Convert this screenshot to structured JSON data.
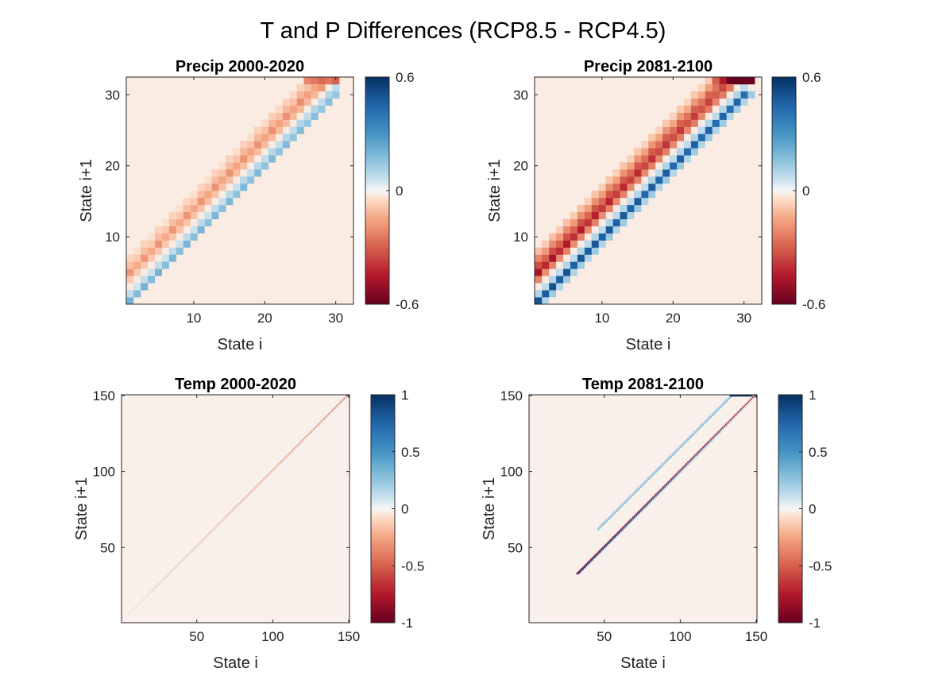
{
  "figure": {
    "title": "T and P Differences (RCP8.5 - RCP4.5)"
  },
  "chart_data": [
    {
      "type": "heatmap",
      "title": "Precip 2000-2020",
      "xlabel": "State i",
      "ylabel": "State i+1",
      "n_states": 32,
      "xlim": [
        0.5,
        32.5
      ],
      "ylim": [
        0.5,
        32.5
      ],
      "xticks": [
        10,
        20,
        30
      ],
      "yticks": [
        10,
        20,
        30
      ],
      "colorbar": {
        "min": -0.6,
        "max": 0.6,
        "ticks": [
          0.6,
          0,
          -0.6
        ],
        "tick_labels": [
          "0.6",
          "0",
          "-0.6"
        ]
      },
      "colormap": "red-white-blue",
      "background_value": -0.02,
      "bands": [
        {
          "offset": 0,
          "from": 1,
          "to": 30,
          "start_value": 0.18,
          "end_value": 0.14,
          "checker_alt": 0.03
        },
        {
          "offset": 1,
          "from": 1,
          "to": 30,
          "start_value": 0.05,
          "end_value": 0.08,
          "checker_alt": 0.02
        },
        {
          "offset": 3,
          "from": 1,
          "to": 29,
          "start_value": -0.08,
          "end_value": -0.12,
          "checker_alt": 0.0
        },
        {
          "offset": 4,
          "from": 1,
          "to": 28,
          "start_value": -0.14,
          "end_value": -0.16,
          "checker_alt": -0.04
        },
        {
          "offset": 5,
          "from": 1,
          "to": 27,
          "start_value": -0.08,
          "end_value": -0.1,
          "checker_alt": -0.02
        },
        {
          "offset": 6,
          "from": 1,
          "to": 26,
          "start_value": -0.04,
          "end_value": -0.05,
          "checker_alt": -0.02
        }
      ],
      "cells": [
        {
          "i": 26,
          "j": 32,
          "value": -0.22
        },
        {
          "i": 27,
          "j": 32,
          "value": -0.25
        },
        {
          "i": 28,
          "j": 32,
          "value": -0.28
        },
        {
          "i": 29,
          "j": 32,
          "value": -0.25
        },
        {
          "i": 30,
          "j": 32,
          "value": -0.3
        },
        {
          "i": 27,
          "j": 31,
          "value": -0.15
        },
        {
          "i": 28,
          "j": 31,
          "value": -0.18
        }
      ]
    },
    {
      "type": "heatmap",
      "title": "Precip 2081-2100",
      "xlabel": "State i",
      "ylabel": "State i+1",
      "n_states": 32,
      "xlim": [
        0.5,
        32.5
      ],
      "ylim": [
        0.5,
        32.5
      ],
      "xticks": [
        10,
        20,
        30
      ],
      "yticks": [
        10,
        20,
        30
      ],
      "colorbar": {
        "min": -0.6,
        "max": 0.6,
        "ticks": [
          0.6,
          0,
          -0.6
        ],
        "tick_labels": [
          "0.6",
          "0",
          "-0.6"
        ]
      },
      "colormap": "red-white-blue",
      "background_value": -0.02,
      "bands": [
        {
          "offset": -1,
          "from": 1,
          "to": 31,
          "start_value": 0.1,
          "end_value": 0.1,
          "checker_alt": 0.03
        },
        {
          "offset": 0,
          "from": 1,
          "to": 30,
          "start_value": 0.48,
          "end_value": 0.42,
          "checker_alt": 0.03
        },
        {
          "offset": 1,
          "from": 1,
          "to": 30,
          "start_value": 0.08,
          "end_value": 0.08,
          "checker_alt": 0.02
        },
        {
          "offset": 3,
          "from": 1,
          "to": 29,
          "start_value": -0.2,
          "end_value": -0.22,
          "checker_alt": -0.02
        },
        {
          "offset": 4,
          "from": 1,
          "to": 28,
          "start_value": -0.42,
          "end_value": -0.3,
          "checker_alt": -0.05
        },
        {
          "offset": 5,
          "from": 1,
          "to": 27,
          "start_value": -0.3,
          "end_value": -0.25,
          "checker_alt": -0.04
        },
        {
          "offset": 6,
          "from": 1,
          "to": 26,
          "start_value": -0.18,
          "end_value": -0.14,
          "checker_alt": -0.03
        },
        {
          "offset": 7,
          "from": 1,
          "to": 25,
          "start_value": -0.08,
          "end_value": -0.06,
          "checker_alt": -0.02
        }
      ],
      "cells": [
        {
          "i": 28,
          "j": 32,
          "value": -0.6
        },
        {
          "i": 29,
          "j": 32,
          "value": -0.6
        },
        {
          "i": 30,
          "j": 32,
          "value": -0.6
        },
        {
          "i": 31,
          "j": 32,
          "value": -0.6
        },
        {
          "i": 27,
          "j": 32,
          "value": -0.45
        },
        {
          "i": 26,
          "j": 32,
          "value": -0.3
        },
        {
          "i": 27,
          "j": 31,
          "value": -0.35
        },
        {
          "i": 28,
          "j": 31,
          "value": -0.25
        }
      ]
    },
    {
      "type": "heatmap",
      "title": "Temp 2000-2020",
      "xlabel": "State i",
      "ylabel": "State i+1",
      "n_states": 150,
      "xlim": [
        0.5,
        150.5
      ],
      "ylim": [
        0.5,
        150.5
      ],
      "xticks": [
        50,
        100,
        150
      ],
      "yticks": [
        50,
        100,
        150
      ],
      "colorbar": {
        "min": -1,
        "max": 1,
        "ticks": [
          1,
          0.5,
          0,
          -0.5,
          -1
        ],
        "tick_labels": [
          "1",
          "0.5",
          "0",
          "-0.5",
          "-1"
        ]
      },
      "colormap": "red-white-blue",
      "background_value": -0.02,
      "bands": [
        {
          "offset": 1,
          "from": 5,
          "to": 149,
          "start_value": -0.08,
          "end_value": -0.35,
          "checker_alt": 0.0
        },
        {
          "offset": 0,
          "from": 5,
          "to": 149,
          "start_value": 0.02,
          "end_value": 0.05,
          "checker_alt": 0.0
        }
      ],
      "cells": []
    },
    {
      "type": "heatmap",
      "title": "Temp 2081-2100",
      "xlabel": "State i",
      "ylabel": "State i+1",
      "n_states": 150,
      "xlim": [
        0.5,
        150.5
      ],
      "ylim": [
        0.5,
        150.5
      ],
      "xticks": [
        50,
        100,
        150
      ],
      "yticks": [
        50,
        100,
        150
      ],
      "colorbar": {
        "min": -1,
        "max": 1,
        "ticks": [
          1,
          0.5,
          0,
          -0.5,
          -1
        ],
        "tick_labels": [
          "1",
          "0.5",
          "0",
          "-0.5",
          "-1"
        ]
      },
      "colormap": "red-white-blue",
      "background_value": -0.02,
      "bands": [
        {
          "offset": 1,
          "from": 32,
          "to": 149,
          "start_value": -0.7,
          "end_value": -0.7,
          "checker_alt": 0.0
        },
        {
          "offset": 0,
          "from": 33,
          "to": 148,
          "start_value": 0.9,
          "end_value": 0.05,
          "checker_alt": 0.0
        },
        {
          "offset": 16,
          "from": 46,
          "to": 134,
          "start_value": 0.3,
          "end_value": 0.3,
          "checker_alt": 0.0
        },
        {
          "offset": 17,
          "from": 46,
          "to": 133,
          "start_value": 0.15,
          "end_value": 0.15,
          "checker_alt": 0.0
        }
      ],
      "cells": [
        {
          "i": 133,
          "j": 150,
          "value": 1.0
        },
        {
          "i": 134,
          "j": 150,
          "value": 1.0
        },
        {
          "i": 135,
          "j": 150,
          "value": 1.0
        },
        {
          "i": 136,
          "j": 150,
          "value": 1.0
        },
        {
          "i": 137,
          "j": 150,
          "value": 1.0
        },
        {
          "i": 138,
          "j": 150,
          "value": 1.0
        },
        {
          "i": 139,
          "j": 150,
          "value": 1.0
        },
        {
          "i": 140,
          "j": 150,
          "value": 1.0
        },
        {
          "i": 141,
          "j": 150,
          "value": 1.0
        },
        {
          "i": 142,
          "j": 150,
          "value": 1.0
        },
        {
          "i": 143,
          "j": 150,
          "value": 1.0
        },
        {
          "i": 144,
          "j": 150,
          "value": 1.0
        },
        {
          "i": 145,
          "j": 150,
          "value": 1.0
        },
        {
          "i": 146,
          "j": 150,
          "value": 1.0
        },
        {
          "i": 147,
          "j": 150,
          "value": 1.0
        }
      ]
    }
  ]
}
